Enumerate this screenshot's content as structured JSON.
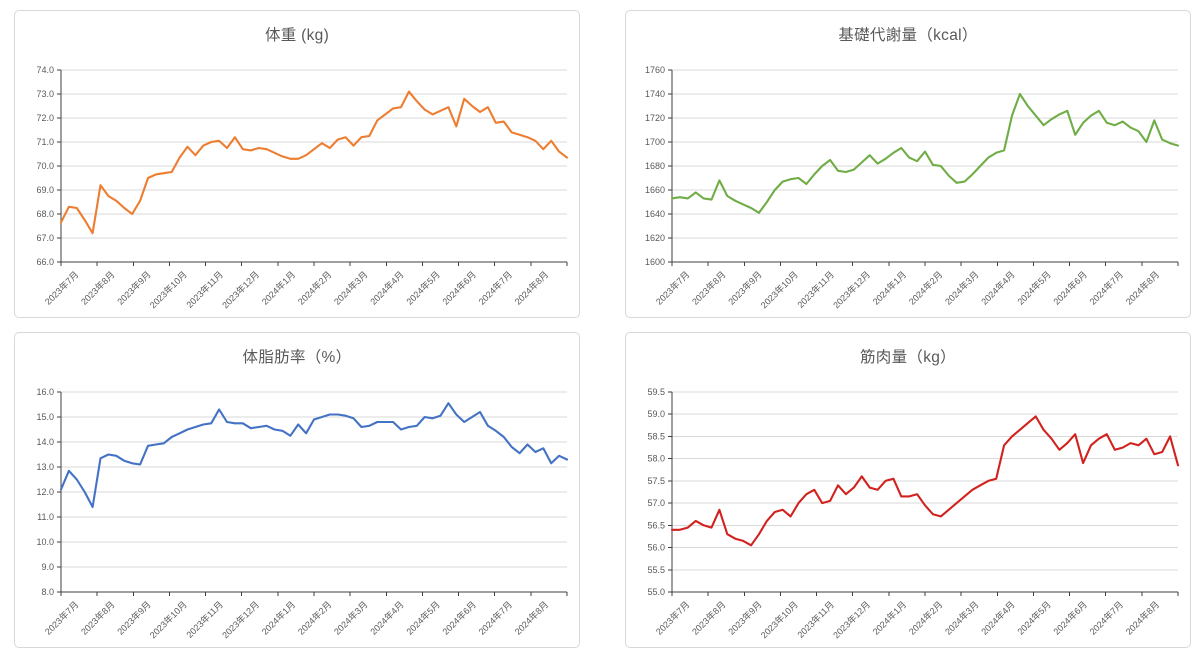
{
  "page": {
    "background": "#ffffff",
    "card_border": "#d8d8d8",
    "text_color": "#595959",
    "grid_color": "#d9d9d9",
    "axis_color": "#3f3f3f"
  },
  "chart_data": [
    {
      "id": "weight",
      "type": "line",
      "title": "体重 (kg)",
      "unit": "kg",
      "color": "#ED7D31",
      "legend": false,
      "grid": true,
      "ylim": [
        66.0,
        74.0
      ],
      "y_ticks": [
        "74.0",
        "73.0",
        "72.0",
        "71.0",
        "70.0",
        "69.0",
        "68.0",
        "67.0",
        "66.0"
      ],
      "categories": [
        "2023年7月",
        "2023年8月",
        "2023年9月",
        "2023年10月",
        "2023年11月",
        "2023年12月",
        "2024年1月",
        "2024年2月",
        "2024年3月",
        "2024年4月",
        "2024年5月",
        "2024年6月",
        "2024年7月",
        "2024年8月"
      ],
      "values": [
        67.65,
        68.3,
        68.25,
        67.75,
        67.2,
        69.2,
        68.75,
        68.55,
        68.25,
        68.0,
        68.55,
        69.5,
        69.65,
        69.7,
        69.75,
        70.35,
        70.8,
        70.45,
        70.85,
        71.0,
        71.05,
        70.75,
        71.2,
        70.7,
        70.65,
        70.75,
        70.7,
        70.55,
        70.4,
        70.3,
        70.3,
        70.45,
        70.7,
        70.95,
        70.75,
        71.1,
        71.2,
        70.85,
        71.2,
        71.25,
        71.9,
        72.15,
        72.4,
        72.45,
        73.1,
        72.7,
        72.35,
        72.15,
        72.3,
        72.45,
        71.65,
        72.8,
        72.5,
        72.25,
        72.45,
        71.8,
        71.85,
        71.4,
        71.3,
        71.2,
        71.05,
        70.7,
        71.05,
        70.6,
        70.35
      ]
    },
    {
      "id": "bmr",
      "type": "line",
      "title": "基礎代謝量（kcal）",
      "unit": "kcal",
      "color": "#70AD47",
      "legend": false,
      "grid": true,
      "ylim": [
        1600,
        1760
      ],
      "y_ticks": [
        "1760",
        "1740",
        "1720",
        "1700",
        "1680",
        "1660",
        "1640",
        "1620",
        "1600"
      ],
      "categories": [
        "2023年7月",
        "2023年8月",
        "2023年9月",
        "2023年10月",
        "2023年11月",
        "2023年12月",
        "2024年1月",
        "2024年2月",
        "2024年3月",
        "2024年4月",
        "2024年5月",
        "2024年6月",
        "2024年7月",
        "2024年8月"
      ],
      "values": [
        1653,
        1654,
        1653,
        1658,
        1653,
        1652,
        1668,
        1655,
        1651,
        1648,
        1645,
        1641,
        1650,
        1660,
        1667,
        1669,
        1670,
        1665,
        1673,
        1680,
        1685,
        1676,
        1675,
        1677,
        1683,
        1689,
        1682,
        1686,
        1691,
        1695,
        1687,
        1684,
        1692,
        1681,
        1680,
        1672,
        1666,
        1667,
        1673,
        1680,
        1687,
        1691,
        1693,
        1722,
        1740,
        1730,
        1722,
        1714,
        1719,
        1723,
        1726,
        1706,
        1716,
        1722,
        1726,
        1716,
        1714,
        1717,
        1712,
        1709,
        1700,
        1718,
        1702,
        1699,
        1697
      ]
    },
    {
      "id": "body-fat",
      "type": "line",
      "title": "体脂肪率（%）",
      "unit": "%",
      "color": "#4472C4",
      "legend": false,
      "grid": true,
      "ylim": [
        8.0,
        16.0
      ],
      "y_ticks": [
        "16.0",
        "15.0",
        "14.0",
        "13.0",
        "12.0",
        "11.0",
        "10.0",
        "9.0",
        "8.0"
      ],
      "categories": [
        "2023年7月",
        "2023年8月",
        "2023年9月",
        "2023年10月",
        "2023年11月",
        "2023年12月",
        "2024年1月",
        "2024年2月",
        "2024年3月",
        "2024年4月",
        "2024年5月",
        "2024年6月",
        "2024年7月",
        "2024年8月"
      ],
      "values": [
        12.1,
        12.85,
        12.5,
        12.0,
        11.4,
        13.35,
        13.5,
        13.45,
        13.25,
        13.15,
        13.1,
        13.85,
        13.9,
        13.95,
        14.2,
        14.35,
        14.5,
        14.6,
        14.7,
        14.75,
        15.3,
        14.8,
        14.75,
        14.75,
        14.55,
        14.6,
        14.65,
        14.5,
        14.45,
        14.25,
        14.7,
        14.35,
        14.9,
        15.0,
        15.1,
        15.1,
        15.05,
        14.95,
        14.6,
        14.65,
        14.8,
        14.8,
        14.8,
        14.5,
        14.6,
        14.65,
        15.0,
        14.95,
        15.05,
        15.55,
        15.1,
        14.8,
        15.0,
        15.2,
        14.65,
        14.45,
        14.2,
        13.8,
        13.55,
        13.9,
        13.6,
        13.75,
        13.15,
        13.45,
        13.3
      ]
    },
    {
      "id": "muscle",
      "type": "line",
      "title": "筋肉量（kg）",
      "unit": "kg",
      "color": "#D1221E",
      "legend": false,
      "grid": true,
      "ylim": [
        55.0,
        59.5
      ],
      "y_ticks": [
        "59.5",
        "59.0",
        "58.5",
        "58.0",
        "57.5",
        "57.0",
        "56.5",
        "56.0",
        "55.5",
        "55.0"
      ],
      "categories": [
        "2023年7月",
        "2023年8月",
        "2023年9月",
        "2023年10月",
        "2023年11月",
        "2023年12月",
        "2024年1月",
        "2024年2月",
        "2024年3月",
        "2024年4月",
        "2024年5月",
        "2024年6月",
        "2024年7月",
        "2024年8月"
      ],
      "values": [
        56.4,
        56.4,
        56.45,
        56.6,
        56.5,
        56.45,
        56.85,
        56.3,
        56.2,
        56.15,
        56.05,
        56.3,
        56.6,
        56.8,
        56.85,
        56.7,
        57.0,
        57.2,
        57.3,
        57.0,
        57.05,
        57.4,
        57.2,
        57.35,
        57.6,
        57.35,
        57.3,
        57.5,
        57.55,
        57.15,
        57.15,
        57.2,
        56.95,
        56.75,
        56.7,
        56.85,
        57.0,
        57.15,
        57.3,
        57.4,
        57.5,
        57.55,
        58.3,
        58.5,
        58.65,
        58.8,
        58.95,
        58.65,
        58.45,
        58.2,
        58.35,
        58.55,
        57.9,
        58.3,
        58.45,
        58.55,
        58.2,
        58.25,
        58.35,
        58.3,
        58.45,
        58.1,
        58.15,
        58.5,
        57.85
      ]
    }
  ]
}
